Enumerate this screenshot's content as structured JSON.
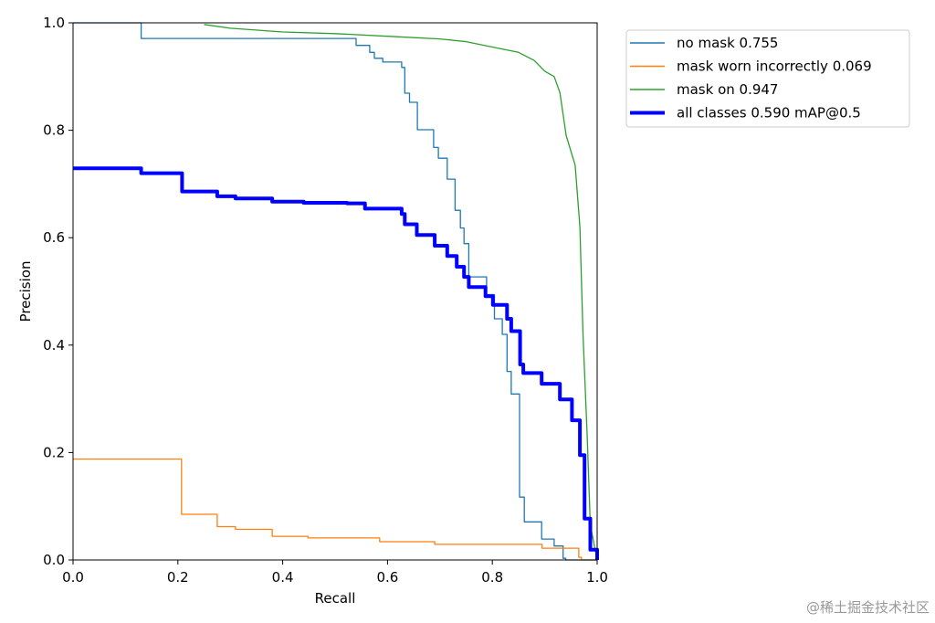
{
  "chart_data": {
    "type": "line",
    "title": "",
    "xlabel": "Recall",
    "ylabel": "Precision",
    "xlim": [
      0,
      1
    ],
    "ylim": [
      0,
      1
    ],
    "xticks": [
      "0.0",
      "0.2",
      "0.4",
      "0.6",
      "0.8",
      "1.0"
    ],
    "yticks": [
      "0.0",
      "0.2",
      "0.4",
      "0.6",
      "0.8",
      "1.0"
    ],
    "grid": false,
    "legend_position": "outside-top-right",
    "series": [
      {
        "name": "no mask 0.755",
        "color": "#1f77b4",
        "style": "step",
        "points": [
          [
            0,
            1.0
          ],
          [
            0.13,
            0.971
          ],
          [
            0.54,
            0.958
          ],
          [
            0.566,
            0.945
          ],
          [
            0.575,
            0.934
          ],
          [
            0.591,
            0.927
          ],
          [
            0.627,
            0.917
          ],
          [
            0.633,
            0.869
          ],
          [
            0.642,
            0.852
          ],
          [
            0.657,
            0.801
          ],
          [
            0.688,
            0.768
          ],
          [
            0.697,
            0.748
          ],
          [
            0.714,
            0.709
          ],
          [
            0.729,
            0.651
          ],
          [
            0.739,
            0.618
          ],
          [
            0.746,
            0.589
          ],
          [
            0.755,
            0.527
          ],
          [
            0.789,
            0.494
          ],
          [
            0.804,
            0.449
          ],
          [
            0.819,
            0.42
          ],
          [
            0.828,
            0.351
          ],
          [
            0.836,
            0.309
          ],
          [
            0.852,
            0.117
          ],
          [
            0.861,
            0.071
          ],
          [
            0.894,
            0.039
          ],
          [
            0.918,
            0.026
          ],
          [
            0.935,
            0.003
          ],
          [
            0.94,
            0.0
          ],
          [
            1.0,
            0.0
          ]
        ]
      },
      {
        "name": "mask worn incorrectly 0.069",
        "color": "#ff7f0e",
        "style": "step",
        "points": [
          [
            0,
            0.188
          ],
          [
            0.207,
            0.085
          ],
          [
            0.275,
            0.062
          ],
          [
            0.31,
            0.057
          ],
          [
            0.38,
            0.044
          ],
          [
            0.448,
            0.041
          ],
          [
            0.585,
            0.034
          ],
          [
            0.69,
            0.029
          ],
          [
            0.895,
            0.022
          ],
          [
            0.965,
            0.005
          ],
          [
            0.97,
            0.0
          ],
          [
            1.0,
            0.0
          ]
        ]
      },
      {
        "name": "mask on 0.947",
        "color": "#2ca02c",
        "style": "line",
        "points": [
          [
            0.25,
            0.997
          ],
          [
            0.3,
            0.99
          ],
          [
            0.4,
            0.983
          ],
          [
            0.5,
            0.98
          ],
          [
            0.6,
            0.975
          ],
          [
            0.7,
            0.97
          ],
          [
            0.75,
            0.965
          ],
          [
            0.8,
            0.955
          ],
          [
            0.85,
            0.945
          ],
          [
            0.88,
            0.93
          ],
          [
            0.9,
            0.91
          ],
          [
            0.918,
            0.9
          ],
          [
            0.929,
            0.87
          ],
          [
            0.941,
            0.79
          ],
          [
            0.958,
            0.735
          ],
          [
            0.967,
            0.62
          ],
          [
            0.973,
            0.42
          ],
          [
            0.981,
            0.23
          ],
          [
            0.987,
            0.065
          ],
          [
            1.0,
            0.0
          ]
        ]
      },
      {
        "name": "all classes 0.590 mAP@0.5",
        "color": "#0000ff",
        "style": "step",
        "thick": true,
        "points": [
          [
            0,
            0.729
          ],
          [
            0.13,
            0.72
          ],
          [
            0.208,
            0.686
          ],
          [
            0.275,
            0.677
          ],
          [
            0.31,
            0.673
          ],
          [
            0.38,
            0.667
          ],
          [
            0.44,
            0.665
          ],
          [
            0.523,
            0.664
          ],
          [
            0.557,
            0.654
          ],
          [
            0.627,
            0.644
          ],
          [
            0.633,
            0.625
          ],
          [
            0.656,
            0.605
          ],
          [
            0.69,
            0.585
          ],
          [
            0.714,
            0.566
          ],
          [
            0.732,
            0.546
          ],
          [
            0.746,
            0.527
          ],
          [
            0.755,
            0.508
          ],
          [
            0.787,
            0.491
          ],
          [
            0.801,
            0.475
          ],
          [
            0.828,
            0.449
          ],
          [
            0.836,
            0.426
          ],
          [
            0.853,
            0.364
          ],
          [
            0.859,
            0.348
          ],
          [
            0.894,
            0.328
          ],
          [
            0.929,
            0.299
          ],
          [
            0.952,
            0.26
          ],
          [
            0.967,
            0.195
          ],
          [
            0.976,
            0.077
          ],
          [
            0.987,
            0.019
          ],
          [
            1.0,
            0.0
          ]
        ]
      }
    ]
  },
  "watermark": "@稀土掘金技术社区"
}
